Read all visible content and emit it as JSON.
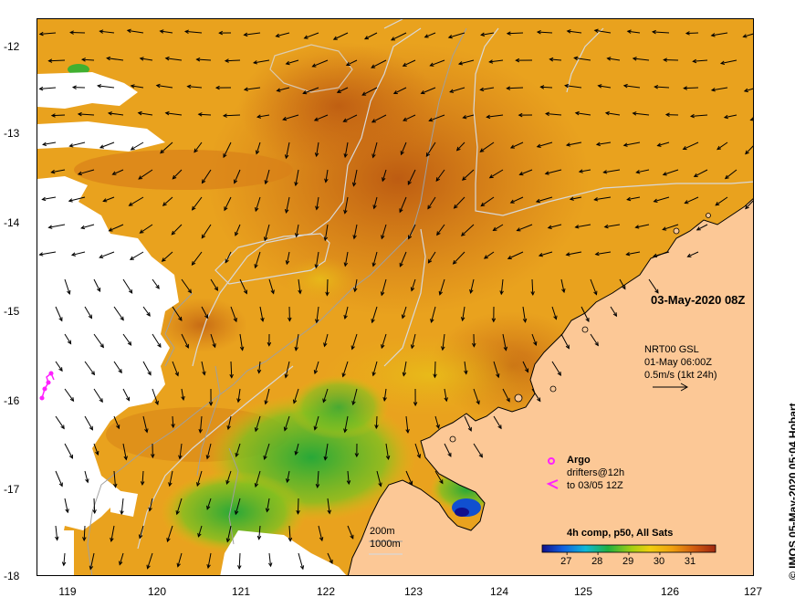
{
  "map": {
    "date_label": "03-May-2020 08Z",
    "currents": {
      "line1": "NRT00 GSL",
      "line2": "01-May 06:00Z",
      "line3": "0.5m/s (1kt 24h)"
    },
    "argo_label": "Argo",
    "drifters_line1": "drifters@12h",
    "drifters_line2": "to 03/05 12Z",
    "contour_200": "200m",
    "contour_1000": "1000m",
    "colorbar_title": "4h comp, p50, All Sats",
    "colorbar_ticks": [
      "27",
      "28",
      "29",
      "30",
      "31"
    ],
    "colorbar_range": [
      26.2,
      31.8
    ],
    "credit": "© IMOS 05-May-2020 05:04 Hobart",
    "x_ticks": [
      "119",
      "120",
      "121",
      "122",
      "123",
      "124",
      "125",
      "126",
      "127"
    ],
    "y_ticks": [
      "-12",
      "-13",
      "-14",
      "-15",
      "-16",
      "-17",
      "-18"
    ],
    "colors": {
      "land": "#fcc896",
      "sst_warm": "#c85a10",
      "sst_mid": "#e69a1c",
      "sst_cool": "#33b033",
      "argo": "#ff20ff"
    }
  }
}
